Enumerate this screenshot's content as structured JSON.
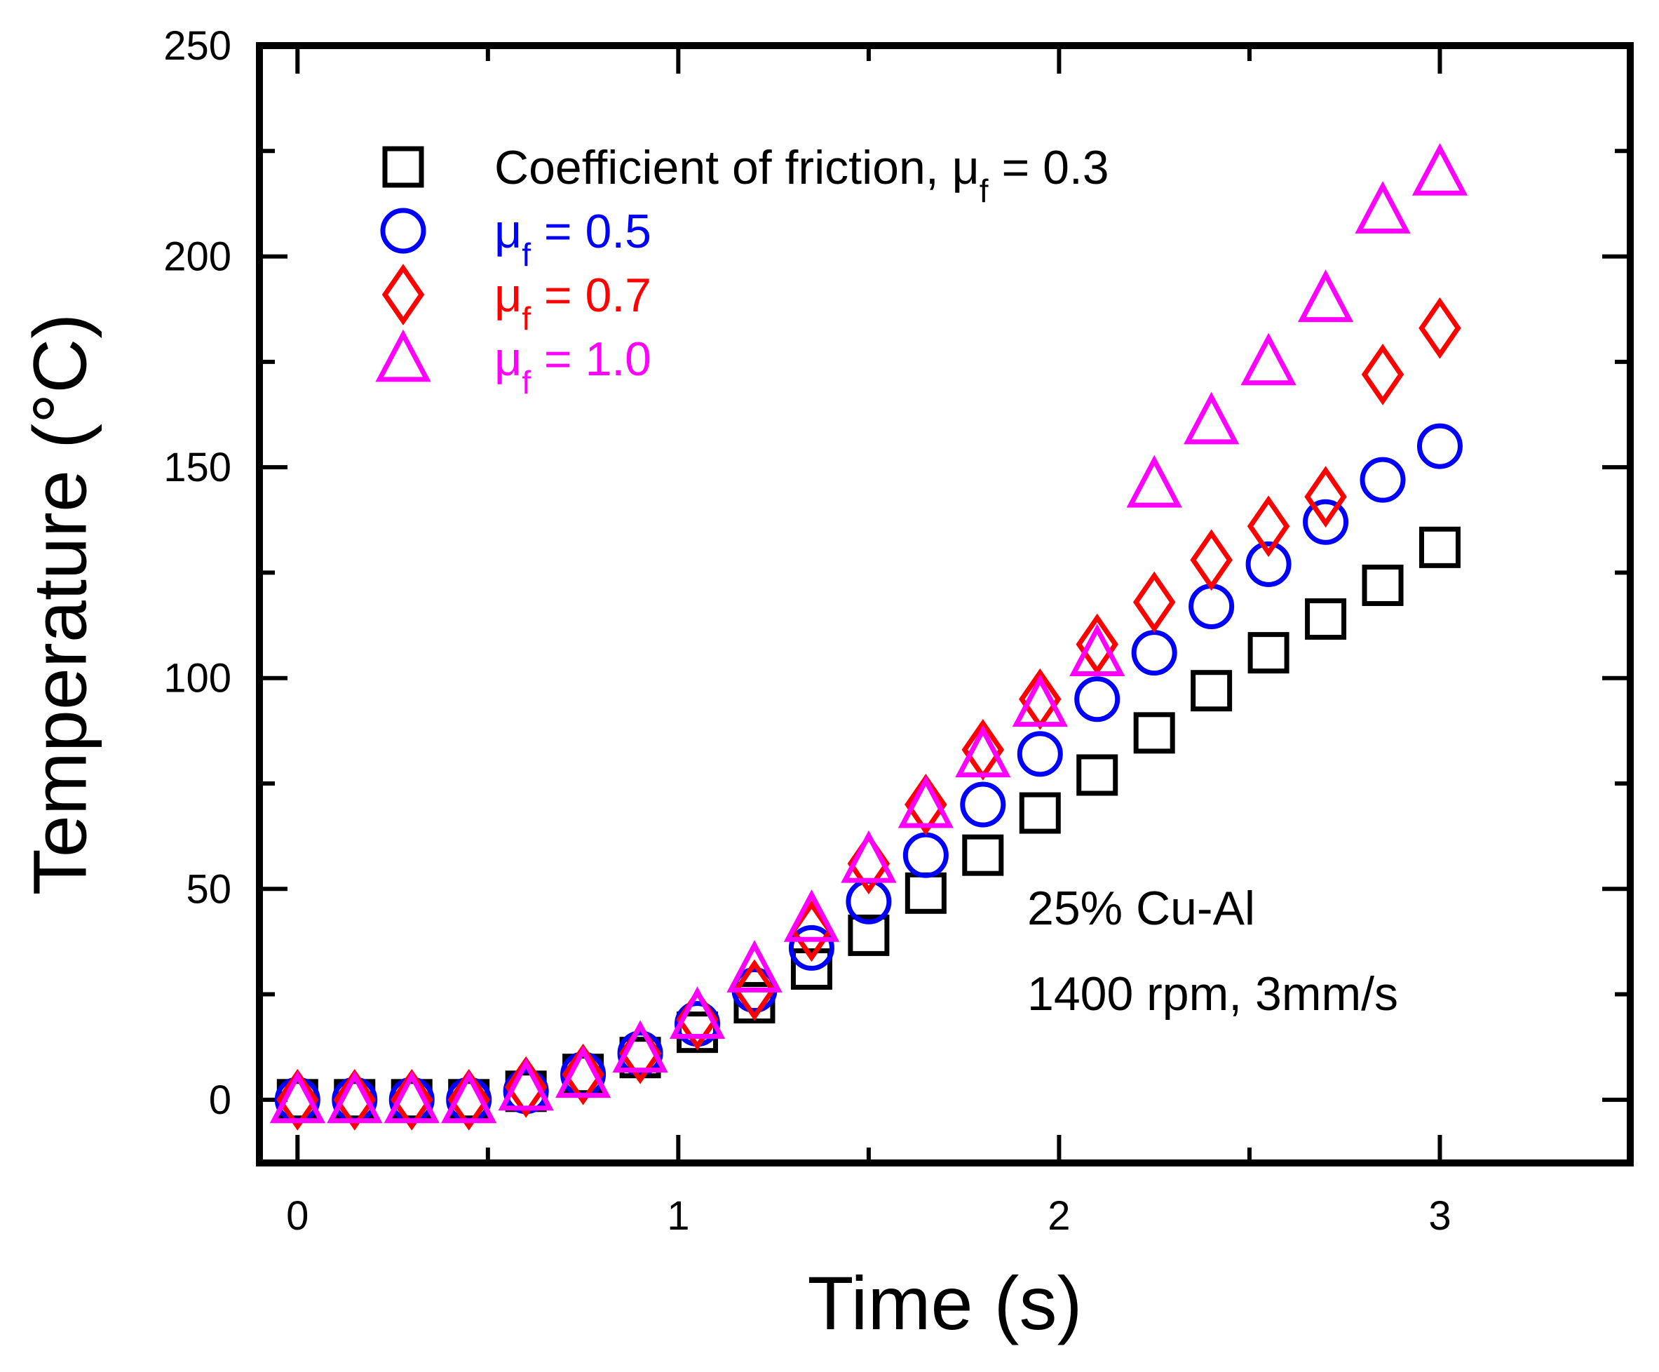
{
  "chart_data": {
    "type": "scatter",
    "title": "",
    "xlabel": "Time (s)",
    "ylabel": "Temperature (°C)",
    "xlim": [
      -0.1,
      3.5
    ],
    "ylim": [
      -15,
      250
    ],
    "x_ticks": [
      0,
      1,
      2,
      3
    ],
    "x_tick_labels": [
      "0",
      "1",
      "2",
      "3"
    ],
    "y_ticks": [
      0,
      50,
      100,
      150,
      200,
      250
    ],
    "y_tick_labels": [
      "0",
      "50",
      "100",
      "150",
      "200",
      "250"
    ],
    "grid": false,
    "legend_position": "top-left",
    "series": [
      {
        "name": "Coefficient of friction, μf = 0.3",
        "legend_label": "Coefficient of friction, μ",
        "legend_sub": "f",
        "legend_value": " = 0.3",
        "marker": "square",
        "color": "#000000",
        "x": [
          0,
          0.15,
          0.3,
          0.45,
          0.6,
          0.75,
          0.9,
          1.05,
          1.2,
          1.35,
          1.5,
          1.65,
          1.8,
          1.95,
          2.1,
          2.25,
          2.4,
          2.55,
          2.7,
          2.85,
          3.0
        ],
        "y": [
          0,
          0,
          0,
          0,
          2,
          6,
          10,
          16,
          23,
          31,
          39,
          49,
          58,
          68,
          77,
          87,
          97,
          106,
          114,
          122,
          131
        ]
      },
      {
        "name": "μf = 0.5",
        "legend_label": "μ",
        "legend_sub": "f",
        "legend_value": " = 0.5",
        "marker": "circle",
        "color": "#0000ff",
        "x": [
          0,
          0.15,
          0.3,
          0.45,
          0.6,
          0.75,
          0.9,
          1.05,
          1.2,
          1.35,
          1.5,
          1.65,
          1.8,
          1.95,
          2.1,
          2.25,
          2.4,
          2.55,
          2.7,
          2.85,
          3.0
        ],
        "y": [
          0,
          0,
          0,
          0,
          2,
          6,
          11,
          18,
          26,
          36,
          47,
          58,
          70,
          82,
          95,
          106,
          117,
          127,
          137,
          147,
          155
        ]
      },
      {
        "name": "μf = 0.7",
        "legend_label": "μ",
        "legend_sub": "f",
        "legend_value": " = 0.7",
        "marker": "diamond",
        "color": "#ff0000",
        "x": [
          0,
          0.15,
          0.3,
          0.45,
          0.6,
          0.75,
          0.9,
          1.05,
          1.2,
          1.35,
          1.5,
          1.65,
          1.8,
          1.95,
          2.1,
          2.25,
          2.4,
          2.55,
          2.7,
          2.85,
          3.0
        ],
        "y": [
          0,
          0,
          0,
          0,
          3,
          6,
          11,
          19,
          26,
          40,
          56,
          70,
          83,
          95,
          108,
          118,
          128,
          136,
          143,
          172,
          183
        ]
      },
      {
        "name": "μf = 1.0",
        "legend_label": "μ",
        "legend_sub": "f",
        "legend_value": " = 1.0",
        "marker": "triangle",
        "color": "#ff00ff",
        "x": [
          0,
          0.15,
          0.3,
          0.45,
          0.6,
          0.75,
          0.9,
          1.05,
          1.2,
          1.35,
          1.5,
          1.65,
          1.8,
          1.95,
          2.1,
          2.25,
          2.4,
          2.55,
          2.7,
          2.85,
          3.0
        ],
        "y": [
          0,
          0,
          0,
          0,
          3,
          6,
          12,
          20,
          31,
          43,
          57,
          70,
          82,
          94,
          106,
          146,
          161,
          175,
          190,
          211,
          220
        ]
      }
    ],
    "annotations": [
      "25% Cu-Al",
      "1400 rpm, 3mm/s"
    ]
  }
}
